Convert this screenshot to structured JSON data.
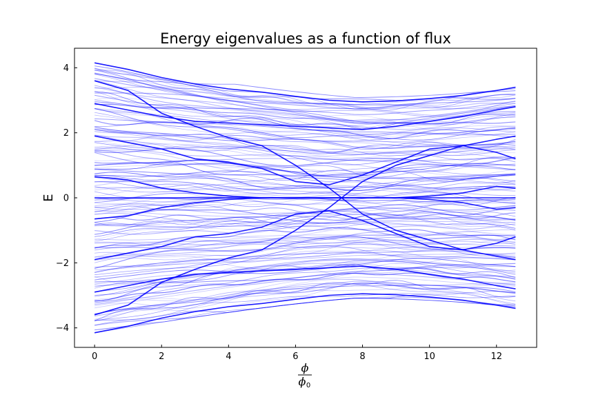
{
  "chart_data": {
    "type": "line",
    "title": "Energy eigenvalues as a function of flux",
    "xlabel": {
      "numerator": "ϕ",
      "denominator": "ϕ",
      "denominator_subscript": "0"
    },
    "ylabel": "E",
    "xlim": [
      -0.6,
      13.2
    ],
    "ylim": [
      -4.6,
      4.6
    ],
    "xticks": [
      0,
      2,
      4,
      6,
      8,
      10,
      12
    ],
    "xtick_labels": [
      "0",
      "2",
      "4",
      "6",
      "8",
      "10",
      "12"
    ],
    "yticks": [
      -4,
      -2,
      0,
      2,
      4
    ],
    "ytick_labels": [
      "−4",
      "−2",
      "0",
      "2",
      "4"
    ],
    "x_range": [
      0,
      12.566
    ],
    "grid": false,
    "legend": "none",
    "line_color": "#0000ff",
    "series": [
      {
        "x": [
          0,
          1,
          2,
          3,
          4,
          5,
          6,
          7,
          8,
          9,
          10,
          11,
          12,
          12.57
        ],
        "values": [
          4.15,
          3.95,
          3.7,
          3.5,
          3.35,
          3.25,
          3.12,
          3.0,
          2.95,
          2.98,
          3.05,
          3.15,
          3.3,
          3.4
        ]
      },
      {
        "x": [
          0,
          1,
          2,
          3,
          4,
          5,
          6,
          7,
          8,
          9,
          10,
          11,
          12,
          12.57
        ],
        "values": [
          -4.15,
          -3.95,
          -3.7,
          -3.5,
          -3.35,
          -3.25,
          -3.12,
          -3.0,
          -2.95,
          -2.98,
          -3.05,
          -3.15,
          -3.3,
          -3.4
        ]
      },
      {
        "x": [
          0,
          1,
          2,
          3,
          4,
          5,
          6,
          7,
          8,
          9,
          10,
          11,
          12,
          12.57
        ],
        "values": [
          3.6,
          3.3,
          2.6,
          2.2,
          1.85,
          1.6,
          1.0,
          0.3,
          -0.5,
          -1.0,
          -1.3,
          -1.6,
          -1.8,
          -1.9
        ]
      },
      {
        "x": [
          0,
          1,
          2,
          3,
          4,
          5,
          6,
          7,
          8,
          9,
          10,
          11,
          12,
          12.57
        ],
        "values": [
          -3.6,
          -3.3,
          -2.6,
          -2.2,
          -1.85,
          -1.6,
          -1.0,
          -0.3,
          0.5,
          1.0,
          1.3,
          1.6,
          1.8,
          1.9
        ]
      },
      {
        "x": [
          0,
          1,
          2,
          3,
          4,
          5,
          6,
          7,
          8,
          9,
          10,
          11,
          12,
          12.57
        ],
        "values": [
          0.65,
          0.55,
          0.3,
          0.15,
          0.05,
          0.0,
          0.0,
          0.0,
          0.0,
          0.0,
          0.05,
          0.15,
          0.35,
          0.3
        ]
      },
      {
        "x": [
          0,
          1,
          2,
          3,
          4,
          5,
          6,
          7,
          8,
          9,
          10,
          11,
          12,
          12.57
        ],
        "values": [
          -0.65,
          -0.55,
          -0.3,
          -0.15,
          -0.05,
          0.0,
          0.0,
          0.0,
          0.0,
          0.0,
          -0.05,
          -0.15,
          -0.35,
          -0.3
        ]
      },
      {
        "x": [
          0,
          1,
          2,
          3,
          4,
          5,
          6,
          7,
          8,
          9,
          10,
          11,
          12,
          12.57
        ],
        "values": [
          0,
          0,
          0,
          0,
          0,
          0,
          0,
          0,
          0,
          0,
          0,
          0,
          0,
          0
        ]
      },
      {
        "x": [
          0,
          1,
          2,
          3,
          4,
          5,
          6,
          7,
          8,
          9,
          10,
          11,
          12,
          12.57
        ],
        "values": [
          1.9,
          1.7,
          1.5,
          1.2,
          1.1,
          0.9,
          0.5,
          0.4,
          0.7,
          1.1,
          1.5,
          1.6,
          1.4,
          1.2
        ]
      },
      {
        "x": [
          0,
          1,
          2,
          3,
          4,
          5,
          6,
          7,
          8,
          9,
          10,
          11,
          12,
          12.57
        ],
        "values": [
          -1.9,
          -1.7,
          -1.5,
          -1.2,
          -1.1,
          -0.9,
          -0.5,
          -0.4,
          -0.7,
          -1.1,
          -1.5,
          -1.6,
          -1.4,
          -1.2
        ]
      },
      {
        "x": [
          0,
          1,
          2,
          3,
          4,
          5,
          6,
          7,
          8,
          9,
          10,
          11,
          12,
          12.57
        ],
        "values": [
          2.9,
          2.7,
          2.5,
          2.35,
          2.3,
          2.25,
          2.2,
          2.15,
          2.1,
          2.2,
          2.35,
          2.5,
          2.7,
          2.8
        ]
      },
      {
        "x": [
          0,
          1,
          2,
          3,
          4,
          5,
          6,
          7,
          8,
          9,
          10,
          11,
          12,
          12.57
        ],
        "values": [
          -2.9,
          -2.7,
          -2.5,
          -2.35,
          -2.3,
          -2.25,
          -2.2,
          -2.15,
          -2.1,
          -2.2,
          -2.35,
          -2.5,
          -2.7,
          -2.8
        ]
      }
    ]
  }
}
